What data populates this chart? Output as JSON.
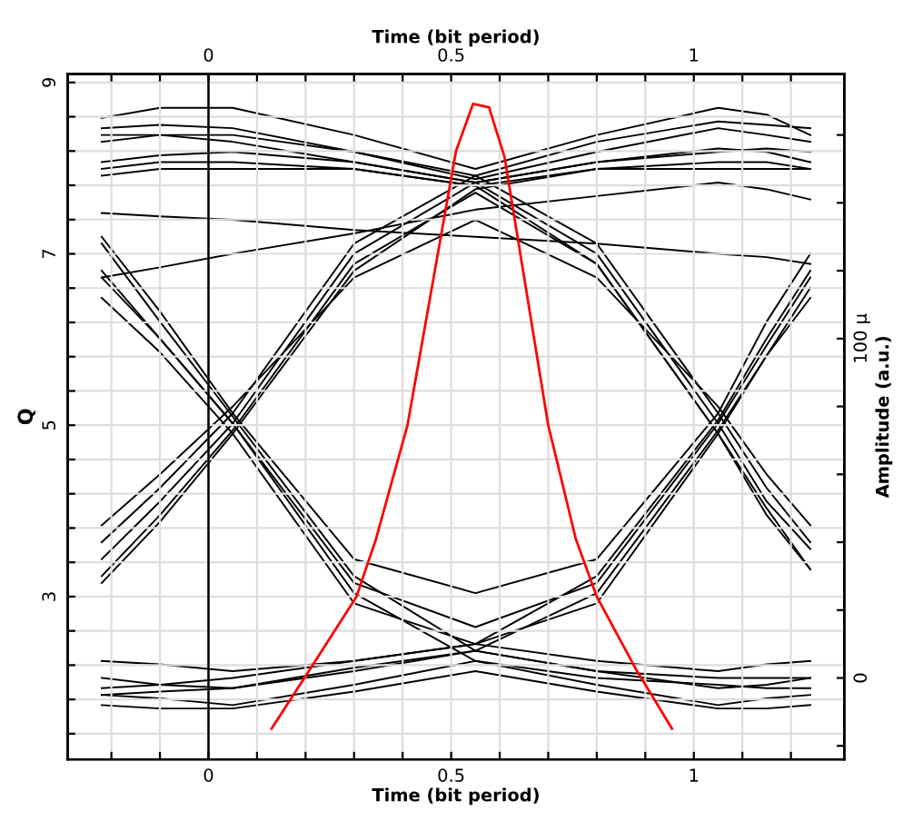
{
  "chart_data": {
    "type": "line",
    "xlabel": "Time (bit period)",
    "x2label": "Time (bit period)",
    "ylabel": "Q",
    "y2label": "Amplitude (a.u.)",
    "x": [
      -0.22,
      -0.1,
      0.05,
      0.3,
      0.55,
      0.8,
      1.05,
      1.15,
      1.24
    ],
    "xlim": [
      -0.29,
      1.31
    ],
    "xticks": [
      {
        "value": -0.2,
        "label": null
      },
      {
        "value": -0.1,
        "label": null
      },
      0,
      {
        "value": 0.1,
        "label": null
      },
      {
        "value": 0.2,
        "label": null
      },
      {
        "value": 0.3,
        "label": null
      },
      {
        "value": 0.4,
        "label": null
      },
      0.5,
      {
        "value": 0.6,
        "label": null
      },
      {
        "value": 0.7,
        "label": null
      },
      {
        "value": 0.8,
        "label": null
      },
      {
        "value": 0.9,
        "label": null
      },
      1,
      {
        "value": 1.1,
        "label": null
      },
      {
        "value": 1.2,
        "label": null
      }
    ],
    "x2lim": [
      -0.29,
      1.31
    ],
    "x2ticks": [
      {
        "value": -0.2,
        "label": null
      },
      {
        "value": -0.1,
        "label": null
      },
      0,
      {
        "value": 0.1,
        "label": null
      },
      {
        "value": 0.2,
        "label": null
      },
      {
        "value": 0.3,
        "label": null
      },
      {
        "value": 0.4,
        "label": null
      },
      0.5,
      {
        "value": 0.6,
        "label": null
      },
      {
        "value": 0.7,
        "label": null
      },
      {
        "value": 0.8,
        "label": null
      },
      {
        "value": 0.9,
        "label": null
      },
      1,
      {
        "value": 1.1,
        "label": null
      },
      {
        "value": 1.2,
        "label": null
      }
    ],
    "ylim": [
      1.1,
      9.1
    ],
    "yticks": [
      {
        "value": 1.4,
        "label": null
      },
      {
        "value": 1.8,
        "label": null
      },
      {
        "value": 2.2,
        "label": null
      },
      {
        "value": 2.6,
        "label": null
      },
      3,
      {
        "value": 3.4,
        "label": null
      },
      {
        "value": 3.8,
        "label": null
      },
      {
        "value": 4.2,
        "label": null
      },
      {
        "value": 4.6,
        "label": null
      },
      5,
      {
        "value": 5.4,
        "label": null
      },
      {
        "value": 5.8,
        "label": null
      },
      {
        "value": 6.2,
        "label": null
      },
      {
        "value": 6.6,
        "label": null
      },
      7,
      {
        "value": 7.4,
        "label": null
      },
      {
        "value": 7.8,
        "label": null
      },
      {
        "value": 8.2,
        "label": null
      },
      {
        "value": 8.6,
        "label": null
      },
      9
    ],
    "y2lim": [
      -24,
      178
    ],
    "y2ticks": [
      {
        "value": -20,
        "label": null
      },
      0,
      {
        "value": 20,
        "label": null
      },
      {
        "value": 40,
        "label": null
      },
      {
        "value": 60,
        "label": null
      },
      {
        "value": 80,
        "label": null
      },
      {
        "value": 100,
        "label": "100 μ"
      },
      {
        "value": 120,
        "label": null
      },
      {
        "value": 140,
        "label": null
      },
      {
        "value": 160,
        "label": null
      }
    ],
    "grid": true,
    "legend": false,
    "line_style": "solid",
    "marker": "none",
    "ref_lines": [
      {
        "axis": "x",
        "value": 0,
        "color": "#000000"
      }
    ],
    "series": [
      {
        "color": "#000000",
        "axis": "y2",
        "values": [
          165,
          168,
          168,
          160,
          150,
          160,
          168,
          166,
          160
        ]
      },
      {
        "color": "#000000",
        "axis": "y2",
        "values": [
          158,
          160,
          160,
          155,
          147,
          155,
          162,
          160,
          158
        ]
      },
      {
        "color": "#000000",
        "axis": "y2",
        "values": [
          152,
          154,
          155,
          152,
          146,
          152,
          156,
          155,
          152
        ]
      },
      {
        "color": "#000000",
        "axis": "y2",
        "values": [
          148,
          150,
          150,
          150,
          145,
          150,
          150,
          150,
          150
        ]
      },
      {
        "color": "#000000",
        "axis": "y2",
        "values": [
          162,
          163,
          162,
          155,
          148,
          158,
          164,
          163,
          162
        ]
      },
      {
        "color": "#000000",
        "axis": "y2",
        "values": [
          35,
          52,
          75,
          125,
          146,
          152,
          155,
          156,
          155
        ]
      },
      {
        "color": "#000000",
        "axis": "y2",
        "values": [
          28,
          46,
          72,
          120,
          144,
          150,
          152,
          152,
          150
        ]
      },
      {
        "color": "#000000",
        "axis": "y2",
        "values": [
          40,
          56,
          78,
          128,
          148,
          128,
          78,
          56,
          40
        ]
      },
      {
        "color": "#000000",
        "axis": "y2",
        "values": [
          30,
          48,
          73,
          122,
          143,
          122,
          72,
          50,
          32
        ]
      },
      {
        "color": "#000000",
        "axis": "y2",
        "values": [
          45,
          60,
          80,
          118,
          135,
          118,
          80,
          60,
          45
        ]
      },
      {
        "color": "#000000",
        "axis": "y2",
        "values": [
          160,
          160,
          158,
          152,
          146,
          125,
          75,
          52,
          38
        ]
      },
      {
        "color": "#000000",
        "axis": "y2",
        "values": [
          150,
          152,
          152,
          150,
          145,
          122,
          72,
          48,
          32
        ]
      },
      {
        "color": "#000000",
        "axis": "y2",
        "values": [
          118,
          100,
          75,
          25,
          5,
          0,
          -2,
          -3,
          -3
        ]
      },
      {
        "color": "#000000",
        "axis": "y2",
        "values": [
          128,
          105,
          77,
          30,
          8,
          2,
          0,
          0,
          0
        ]
      },
      {
        "color": "#000000",
        "axis": "y2",
        "values": [
          120,
          100,
          75,
          28,
          15,
          28,
          75,
          98,
          118
        ]
      },
      {
        "color": "#000000",
        "axis": "y2",
        "values": [
          130,
          108,
          78,
          35,
          25,
          35,
          78,
          105,
          125
        ]
      },
      {
        "color": "#000000",
        "axis": "y2",
        "values": [
          112,
          96,
          72,
          22,
          10,
          22,
          72,
          95,
          112
        ]
      },
      {
        "color": "#000000",
        "axis": "y2",
        "values": [
          -3,
          -2,
          0,
          5,
          10,
          30,
          76,
          100,
          120
        ]
      },
      {
        "color": "#000000",
        "axis": "y2",
        "values": [
          -5,
          -4,
          -3,
          3,
          8,
          25,
          73,
          95,
          115
        ]
      },
      {
        "color": "#000000",
        "axis": "y2",
        "values": [
          0,
          -2,
          -3,
          2,
          8,
          2,
          -3,
          -2,
          0
        ]
      },
      {
        "color": "#000000",
        "axis": "y2",
        "values": [
          -5,
          -6,
          -8,
          -2,
          5,
          -2,
          -8,
          -6,
          -5
        ]
      },
      {
        "color": "#000000",
        "axis": "y2",
        "values": [
          5,
          4,
          2,
          5,
          10,
          5,
          2,
          4,
          5
        ]
      },
      {
        "color": "#000000",
        "axis": "y2",
        "values": [
          -8,
          -9,
          -9,
          -4,
          2,
          -4,
          -9,
          -9,
          -8
        ]
      },
      {
        "color": "#000000",
        "axis": "y2",
        "values": [
          137,
          136,
          135,
          132,
          130,
          128,
          125,
          124,
          122
        ]
      },
      {
        "color": "#000000",
        "axis": "y2",
        "values": [
          118,
          121,
          125,
          131,
          138,
          142,
          146,
          144,
          141
        ]
      },
      {
        "color": "#ff0000",
        "axis": "y",
        "x": [
          0.13,
          0.21,
          0.305,
          0.345,
          0.41,
          0.46,
          0.51,
          0.545,
          0.578,
          0.61,
          0.7,
          0.757,
          0.8,
          0.88,
          0.955
        ],
        "values": [
          1.46,
          2.16,
          3.0,
          3.67,
          5.0,
          6.6,
          8.2,
          8.75,
          8.71,
          8.13,
          5.0,
          3.67,
          3.0,
          2.16,
          1.46
        ]
      }
    ]
  }
}
